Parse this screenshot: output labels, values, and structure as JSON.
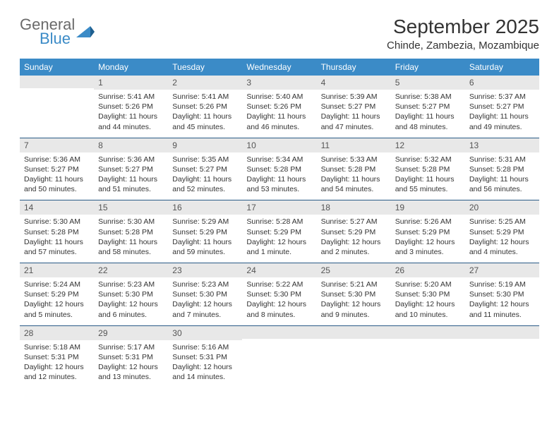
{
  "logo": {
    "general": "General",
    "blue": "Blue"
  },
  "title": "September 2025",
  "location": "Chinde, Zambezia, Mozambique",
  "colors": {
    "header_bg": "#3b8bc7",
    "daynum_bg": "#e8e8e8",
    "row_border": "#2a5b87",
    "logo_gray": "#6a6a6a",
    "logo_blue": "#3b8bc7"
  },
  "weekdays": [
    "Sunday",
    "Monday",
    "Tuesday",
    "Wednesday",
    "Thursday",
    "Friday",
    "Saturday"
  ],
  "weeks": [
    [
      null,
      {
        "n": "1",
        "sunrise": "5:41 AM",
        "sunset": "5:26 PM",
        "daylight": "11 hours and 44 minutes."
      },
      {
        "n": "2",
        "sunrise": "5:41 AM",
        "sunset": "5:26 PM",
        "daylight": "11 hours and 45 minutes."
      },
      {
        "n": "3",
        "sunrise": "5:40 AM",
        "sunset": "5:26 PM",
        "daylight": "11 hours and 46 minutes."
      },
      {
        "n": "4",
        "sunrise": "5:39 AM",
        "sunset": "5:27 PM",
        "daylight": "11 hours and 47 minutes."
      },
      {
        "n": "5",
        "sunrise": "5:38 AM",
        "sunset": "5:27 PM",
        "daylight": "11 hours and 48 minutes."
      },
      {
        "n": "6",
        "sunrise": "5:37 AM",
        "sunset": "5:27 PM",
        "daylight": "11 hours and 49 minutes."
      }
    ],
    [
      {
        "n": "7",
        "sunrise": "5:36 AM",
        "sunset": "5:27 PM",
        "daylight": "11 hours and 50 minutes."
      },
      {
        "n": "8",
        "sunrise": "5:36 AM",
        "sunset": "5:27 PM",
        "daylight": "11 hours and 51 minutes."
      },
      {
        "n": "9",
        "sunrise": "5:35 AM",
        "sunset": "5:27 PM",
        "daylight": "11 hours and 52 minutes."
      },
      {
        "n": "10",
        "sunrise": "5:34 AM",
        "sunset": "5:28 PM",
        "daylight": "11 hours and 53 minutes."
      },
      {
        "n": "11",
        "sunrise": "5:33 AM",
        "sunset": "5:28 PM",
        "daylight": "11 hours and 54 minutes."
      },
      {
        "n": "12",
        "sunrise": "5:32 AM",
        "sunset": "5:28 PM",
        "daylight": "11 hours and 55 minutes."
      },
      {
        "n": "13",
        "sunrise": "5:31 AM",
        "sunset": "5:28 PM",
        "daylight": "11 hours and 56 minutes."
      }
    ],
    [
      {
        "n": "14",
        "sunrise": "5:30 AM",
        "sunset": "5:28 PM",
        "daylight": "11 hours and 57 minutes."
      },
      {
        "n": "15",
        "sunrise": "5:30 AM",
        "sunset": "5:28 PM",
        "daylight": "11 hours and 58 minutes."
      },
      {
        "n": "16",
        "sunrise": "5:29 AM",
        "sunset": "5:29 PM",
        "daylight": "11 hours and 59 minutes."
      },
      {
        "n": "17",
        "sunrise": "5:28 AM",
        "sunset": "5:29 PM",
        "daylight": "12 hours and 1 minute."
      },
      {
        "n": "18",
        "sunrise": "5:27 AM",
        "sunset": "5:29 PM",
        "daylight": "12 hours and 2 minutes."
      },
      {
        "n": "19",
        "sunrise": "5:26 AM",
        "sunset": "5:29 PM",
        "daylight": "12 hours and 3 minutes."
      },
      {
        "n": "20",
        "sunrise": "5:25 AM",
        "sunset": "5:29 PM",
        "daylight": "12 hours and 4 minutes."
      }
    ],
    [
      {
        "n": "21",
        "sunrise": "5:24 AM",
        "sunset": "5:29 PM",
        "daylight": "12 hours and 5 minutes."
      },
      {
        "n": "22",
        "sunrise": "5:23 AM",
        "sunset": "5:30 PM",
        "daylight": "12 hours and 6 minutes."
      },
      {
        "n": "23",
        "sunrise": "5:23 AM",
        "sunset": "5:30 PM",
        "daylight": "12 hours and 7 minutes."
      },
      {
        "n": "24",
        "sunrise": "5:22 AM",
        "sunset": "5:30 PM",
        "daylight": "12 hours and 8 minutes."
      },
      {
        "n": "25",
        "sunrise": "5:21 AM",
        "sunset": "5:30 PM",
        "daylight": "12 hours and 9 minutes."
      },
      {
        "n": "26",
        "sunrise": "5:20 AM",
        "sunset": "5:30 PM",
        "daylight": "12 hours and 10 minutes."
      },
      {
        "n": "27",
        "sunrise": "5:19 AM",
        "sunset": "5:30 PM",
        "daylight": "12 hours and 11 minutes."
      }
    ],
    [
      {
        "n": "28",
        "sunrise": "5:18 AM",
        "sunset": "5:31 PM",
        "daylight": "12 hours and 12 minutes."
      },
      {
        "n": "29",
        "sunrise": "5:17 AM",
        "sunset": "5:31 PM",
        "daylight": "12 hours and 13 minutes."
      },
      {
        "n": "30",
        "sunrise": "5:16 AM",
        "sunset": "5:31 PM",
        "daylight": "12 hours and 14 minutes."
      },
      null,
      null,
      null,
      null
    ]
  ],
  "labels": {
    "sunrise": "Sunrise:",
    "sunset": "Sunset:",
    "daylight": "Daylight:"
  }
}
